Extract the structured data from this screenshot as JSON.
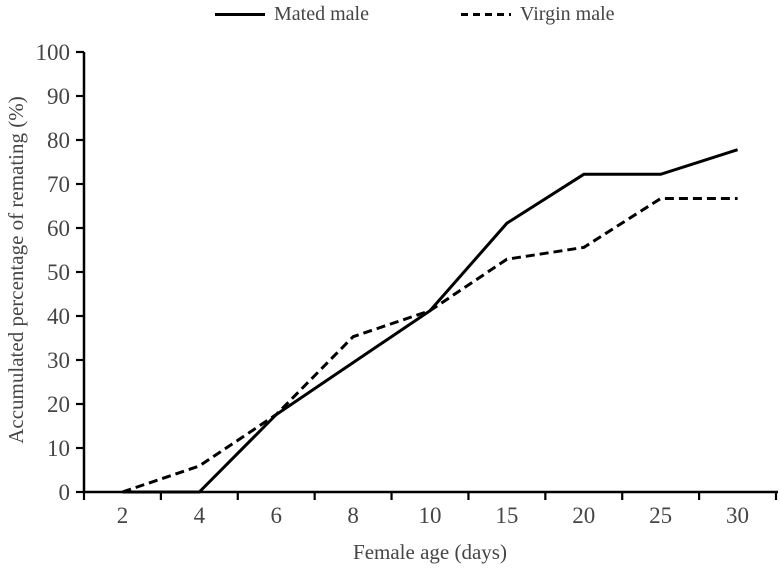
{
  "chart_data": {
    "type": "line",
    "title": "",
    "categories": [
      2,
      4,
      6,
      8,
      10,
      15,
      20,
      25,
      30
    ],
    "series": [
      {
        "name": "Mated male",
        "style": "solid",
        "values": [
          0,
          0,
          17.6,
          29.4,
          41.2,
          61.1,
          72.2,
          72.2,
          77.8
        ]
      },
      {
        "name": "Virgin male",
        "style": "dashed",
        "values": [
          0,
          5.9,
          17.6,
          35.3,
          41.2,
          52.9,
          55.6,
          66.7,
          66.7
        ]
      }
    ],
    "xlabel": "Female age (days)",
    "ylabel": "Accumulated percentage of remating (%)",
    "ylim": [
      0,
      100
    ],
    "ytick_step": 10,
    "yticks": [
      0,
      10,
      20,
      30,
      40,
      50,
      60,
      70,
      80,
      90,
      100
    ],
    "grid": false,
    "legend_position": "top",
    "tick_label_style": "x labels centered between boundary ticks",
    "colors": {
      "line": "#000000",
      "axis": "#000000",
      "text": "#454545",
      "background": "#ffffff"
    }
  }
}
